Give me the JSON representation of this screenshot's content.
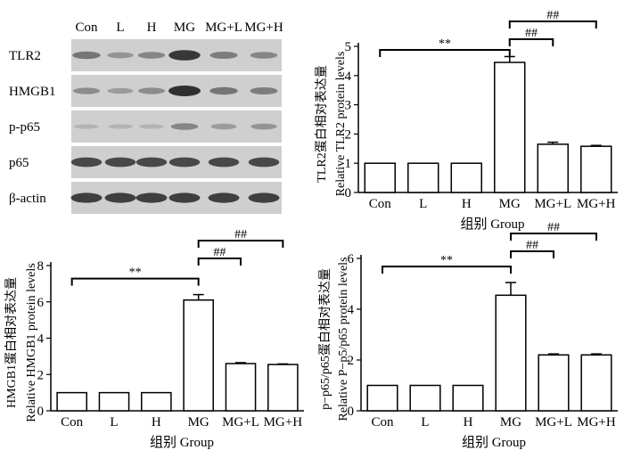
{
  "blot": {
    "lanes": [
      "Con",
      "L",
      "H",
      "MG",
      "MG+L",
      "MG+H"
    ],
    "rows": [
      {
        "label": "TLR2",
        "intensity": [
          0.55,
          0.35,
          0.45,
          0.95,
          0.5,
          0.45
        ]
      },
      {
        "label": "HMGB1",
        "intensity": [
          0.4,
          0.3,
          0.4,
          1.0,
          0.55,
          0.5
        ]
      },
      {
        "label": "p-p65",
        "intensity": [
          0.15,
          0.15,
          0.15,
          0.45,
          0.3,
          0.35
        ]
      },
      {
        "label": "p65",
        "intensity": [
          0.85,
          0.85,
          0.85,
          0.85,
          0.85,
          0.85
        ]
      },
      {
        "label": "β-actin",
        "intensity": [
          0.9,
          0.9,
          0.9,
          0.9,
          0.9,
          0.9
        ]
      }
    ]
  },
  "chart_data": [
    {
      "type": "bar",
      "categories": [
        "Con",
        "L",
        "H",
        "MG",
        "MG+L",
        "MG+H"
      ],
      "values": [
        1,
        1,
        1,
        4.45,
        1.65,
        1.58
      ],
      "errors": [
        0,
        0,
        0,
        0.2,
        0.07,
        0.03
      ],
      "ylabel_cn": "TLR2蛋白相对表达量",
      "ylabel_en": "Relative TLR2 protein levels",
      "xlabel": "组别  Group",
      "ylim": [
        0,
        5
      ],
      "yticks": [
        0,
        1,
        2,
        3,
        4,
        5
      ],
      "annotations": [
        {
          "from": "Con",
          "to": "MG",
          "label": "**"
        },
        {
          "from": "MG",
          "to": "MG+L",
          "label": "##"
        },
        {
          "from": "MG",
          "to": "MG+H",
          "label": "##"
        }
      ]
    },
    {
      "type": "bar",
      "categories": [
        "Con",
        "L",
        "H",
        "MG",
        "MG+L",
        "MG+H"
      ],
      "values": [
        1,
        1,
        1,
        6.1,
        2.6,
        2.55
      ],
      "errors": [
        0,
        0,
        0,
        0.3,
        0.05,
        0.03
      ],
      "ylabel_cn": "HMGB1蛋白相对表达量",
      "ylabel_en": "Relative HMGB1 protein levels",
      "xlabel": "组别  Group",
      "ylim": [
        0,
        8
      ],
      "yticks": [
        0,
        2,
        4,
        6,
        8
      ],
      "annotations": [
        {
          "from": "Con",
          "to": "MG",
          "label": "**"
        },
        {
          "from": "MG",
          "to": "MG+L",
          "label": "##"
        },
        {
          "from": "MG",
          "to": "MG+H",
          "label": "##"
        }
      ]
    },
    {
      "type": "bar",
      "categories": [
        "Con",
        "L",
        "H",
        "MG",
        "MG+L",
        "MG+H"
      ],
      "values": [
        1,
        1,
        1,
        4.55,
        2.2,
        2.2
      ],
      "errors": [
        0,
        0,
        0,
        0.5,
        0.04,
        0.04
      ],
      "ylabel_cn": "p−p65/p65蛋白相对表达量",
      "ylabel_en": "Relative P−p5/p65 protein levels",
      "xlabel": "组别  Group",
      "ylim": [
        0,
        6
      ],
      "yticks": [
        0,
        2,
        4,
        6
      ],
      "annotations": [
        {
          "from": "Con",
          "to": "MG",
          "label": "**"
        },
        {
          "from": "MG",
          "to": "MG+L",
          "label": "##"
        },
        {
          "from": "MG",
          "to": "MG+H",
          "label": "##"
        }
      ]
    }
  ]
}
